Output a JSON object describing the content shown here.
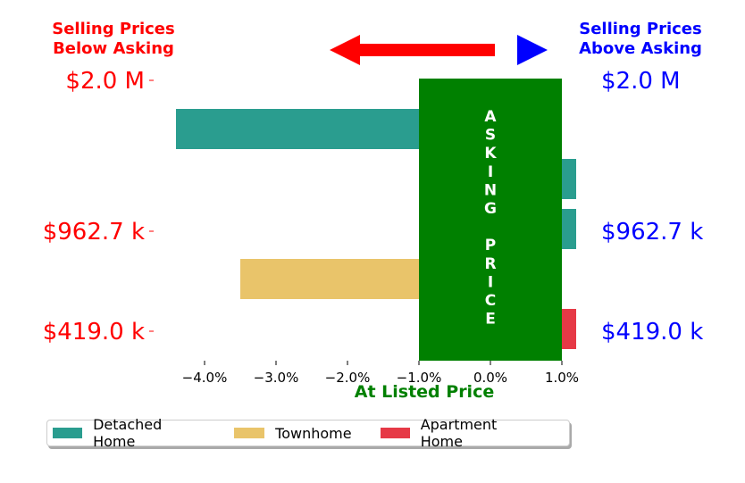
{
  "header": {
    "left_title_line1": "Selling Prices",
    "left_title_line2": "Below Asking",
    "right_title_line1": "Selling Prices",
    "right_title_line2": "Above Asking",
    "left_color": "#ff0000",
    "right_color": "#0000ff"
  },
  "asking_box": {
    "letters": [
      "A",
      "S",
      "K",
      "I",
      "N",
      "G",
      "",
      "P",
      "R",
      "I",
      "C",
      "E"
    ],
    "color": "#008000"
  },
  "chart_data": {
    "type": "bar",
    "orientation": "horizontal",
    "xlabel": "At Listed Price",
    "xlabel_color": "#008000",
    "x_ticks": [
      "−4.0%",
      "−3.0%",
      "−2.0%",
      "−1.0%",
      "0.0%",
      "1.0%"
    ],
    "x_tick_values": [
      -4,
      -3,
      -2,
      -1,
      0,
      1
    ],
    "xlim": [
      -4.6,
      1.0
    ],
    "left_y_ticks": [
      "$2.0 M",
      "$962.7 k",
      "$419.0 k"
    ],
    "right_y_ticks": [
      "$2.0 M",
      "$962.7 k",
      "$419.0 k"
    ],
    "series": [
      {
        "name": "Detached Home",
        "color": "#2a9d8f"
      },
      {
        "name": "Townhome",
        "color": "#e9c46a"
      },
      {
        "name": "Apartment Home",
        "color": "#e63946"
      }
    ],
    "bars": [
      {
        "series": 0,
        "value": -4.4
      },
      {
        "series": 0,
        "value": 1.2
      },
      {
        "series": 0,
        "value": 1.2
      },
      {
        "series": 1,
        "value": -3.5
      },
      {
        "series": 2,
        "value": 1.2
      }
    ],
    "legend_position": "bottom"
  }
}
